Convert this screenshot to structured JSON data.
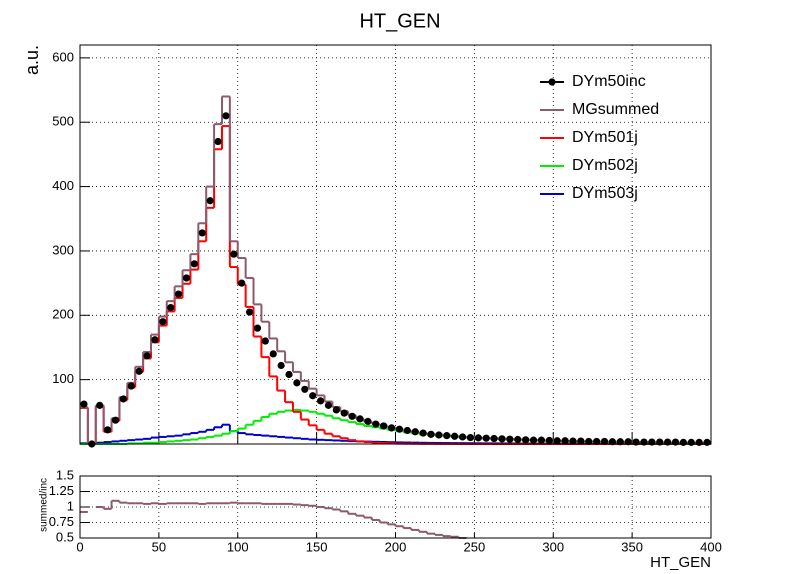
{
  "chart_data": [
    {
      "type": "histogram",
      "title": "HT_GEN",
      "ylabel": "a.u.",
      "bins": [
        0,
        5,
        10,
        15,
        20,
        25,
        30,
        35,
        40,
        45,
        50,
        55,
        60,
        65,
        70,
        75,
        80,
        85,
        90,
        95,
        100,
        105,
        110,
        115,
        120,
        125,
        130,
        135,
        140,
        145,
        150,
        155,
        160,
        165,
        170,
        175,
        180,
        185,
        190,
        195,
        200,
        205,
        210,
        215,
        220,
        225,
        230,
        235,
        240,
        245,
        250,
        255,
        260,
        265,
        270,
        275,
        280,
        285,
        290,
        295,
        300,
        305,
        310,
        315,
        320,
        325,
        330,
        335,
        340,
        345,
        350,
        355,
        360,
        365,
        370,
        375,
        380,
        385,
        390,
        395,
        400
      ],
      "series": [
        {
          "name": "DYm50inc",
          "color": "#000000",
          "marker": "circle",
          "values": [
            62,
            0,
            60,
            22,
            37,
            70,
            90,
            113,
            137,
            162,
            190,
            212,
            233,
            258,
            280,
            328,
            378,
            470,
            510,
            295,
            250,
            205,
            180,
            160,
            140,
            122,
            108,
            95,
            85,
            75,
            67,
            60,
            53,
            48,
            43,
            39,
            35,
            31,
            28,
            25,
            23,
            21,
            19,
            17,
            15,
            14,
            13,
            12,
            11,
            10,
            9.5,
            9,
            8.5,
            8,
            7.5,
            7,
            6.5,
            6,
            6,
            5.5,
            5,
            5,
            4.5,
            4.5,
            4,
            4,
            4,
            3.5,
            3.5,
            3.5,
            3,
            3,
            3,
            3,
            3,
            3,
            2.5,
            2.5,
            2.5,
            2.5
          ]
        },
        {
          "name": "MGsummed",
          "color": "#8c5a6e",
          "values": [
            57,
            0,
            60,
            22,
            40,
            73,
            95,
            120,
            143,
            170,
            198,
            222,
            245,
            270,
            295,
            343,
            400,
            497,
            540,
            315,
            289,
            258,
            217,
            190,
            164,
            144,
            127,
            112,
            98,
            86,
            75.5,
            66,
            57.5,
            51,
            44.5,
            39,
            34.7,
            31.4,
            28.6,
            25.8,
            23,
            20.7,
            18.9,
            17.1,
            15.9,
            14.7,
            13.6,
            12.5,
            11.3,
            10.7,
            10.1,
            9.5,
            9,
            8.4,
            7.9,
            7.3,
            6.8,
            6.2,
            5.7,
            5.5,
            5.1,
            4.8,
            4.6,
            4.3,
            4.1,
            3.9,
            3.7,
            3.4,
            3.2,
            3.1,
            3,
            2.9,
            2.7,
            2.6,
            2.5,
            2.4,
            2.3,
            2.2,
            2,
            1.9
          ]
        },
        {
          "name": "DYm501j",
          "color": "#ff0000",
          "values": [
            56,
            0,
            58,
            19,
            36,
            68,
            88,
            112,
            133,
            158,
            184,
            206,
            227,
            249,
            271,
            315,
            367,
            458,
            494,
            275,
            248,
            213,
            167,
            135,
            105,
            83,
            65,
            50,
            38,
            29,
            22,
            16,
            12,
            9,
            6,
            4,
            3,
            2,
            1.5,
            1,
            0.5,
            0.4,
            0.3,
            0.2,
            0.2,
            0.1,
            0.1,
            0.1,
            0,
            0,
            0,
            0,
            0,
            0,
            0,
            0,
            0,
            0,
            0,
            0,
            0,
            0,
            0,
            0,
            0,
            0,
            0,
            0,
            0,
            0,
            0,
            0,
            0,
            0,
            0,
            0,
            0,
            0,
            0,
            0
          ]
        },
        {
          "name": "DYm502j",
          "color": "#00ee00",
          "values": [
            0,
            0,
            0,
            0,
            0,
            0,
            1,
            1,
            2,
            2,
            3,
            4,
            5,
            6,
            7,
            9,
            11,
            13,
            16,
            20,
            24,
            30,
            36,
            42,
            47,
            50,
            52,
            53,
            52,
            50,
            47,
            44,
            40,
            37,
            34,
            31,
            28,
            26,
            24,
            22,
            20,
            18,
            16.5,
            15,
            14,
            13,
            12,
            11,
            10,
            9.5,
            9,
            8.5,
            8,
            7.5,
            7,
            6.5,
            6,
            5.5,
            5,
            4.8,
            4.5,
            4.2,
            4,
            3.8,
            3.6,
            3.4,
            3.2,
            3,
            2.8,
            2.7,
            2.6,
            2.5,
            2.4,
            2.3,
            2.2,
            2.1,
            2,
            1.9,
            1.8,
            1.7
          ]
        },
        {
          "name": "DYm503j",
          "color": "#0000cc",
          "values": [
            1,
            0,
            2,
            3,
            4,
            5,
            6,
            7,
            8,
            10,
            11,
            12,
            13,
            15,
            17,
            19,
            22,
            26,
            30,
            20,
            17,
            15,
            14,
            13,
            12,
            11,
            10,
            9,
            8,
            7,
            6.5,
            6,
            5.5,
            5,
            4.5,
            4,
            3.7,
            3.4,
            3.1,
            2.8,
            2.5,
            2.3,
            2.1,
            1.9,
            1.7,
            1.6,
            1.5,
            1.4,
            1.3,
            1.2,
            1.1,
            1,
            1,
            0.9,
            0.9,
            0.8,
            0.8,
            0.7,
            0.7,
            0.7,
            0.6,
            0.6,
            0.6,
            0.5,
            0.5,
            0.5,
            0.5,
            0.4,
            0.4,
            0.4,
            0.4,
            0.4,
            0.3,
            0.3,
            0.3,
            0.3,
            0.3,
            0.3,
            0.2,
            0.2
          ]
        }
      ],
      "xlim": [
        0,
        400
      ],
      "xticks": [
        0,
        50,
        100,
        150,
        200,
        250,
        300,
        350,
        400
      ],
      "ylim": [
        0,
        620
      ],
      "yticks": [
        100,
        200,
        300,
        400,
        500,
        600
      ],
      "grid": true,
      "legend": "upper right"
    },
    {
      "type": "histogram",
      "ylabel": "summed/inc",
      "xlabel": "HT_GEN",
      "bins": [
        0,
        5,
        10,
        15,
        20,
        25,
        30,
        35,
        40,
        45,
        50,
        55,
        60,
        65,
        70,
        75,
        80,
        85,
        90,
        95,
        100,
        105,
        110,
        115,
        120,
        125,
        130,
        135,
        140,
        145,
        150,
        155,
        160,
        165,
        170,
        175,
        180,
        185,
        190,
        195,
        200,
        205,
        210,
        215,
        220,
        225,
        230,
        235,
        240,
        245,
        250,
        255,
        260,
        265,
        270,
        275,
        280,
        285,
        290,
        295,
        300,
        305,
        310,
        315,
        320,
        325,
        330,
        335,
        340,
        345,
        350,
        355,
        360,
        365,
        370,
        375,
        380,
        385,
        390,
        395,
        400
      ],
      "series": [
        {
          "color": "#8c5a6e",
          "values": [
            0.92,
            null,
            1.0,
            0.97,
            1.1,
            1.07,
            1.06,
            1.06,
            1.05,
            1.06,
            1.05,
            1.06,
            1.06,
            1.06,
            1.06,
            1.05,
            1.06,
            1.06,
            1.06,
            1.07,
            1.06,
            1.06,
            1.06,
            1.05,
            1.05,
            1.05,
            1.05,
            1.04,
            1.03,
            1.02,
            1.0,
            0.98,
            0.96,
            0.93,
            0.89,
            0.86,
            0.83,
            0.79,
            0.75,
            0.72,
            0.69,
            0.66,
            0.63,
            0.6,
            0.57,
            0.55,
            0.53,
            0.52,
            0.5,
            null,
            null,
            null,
            null,
            null,
            null,
            null,
            null,
            null,
            null,
            null,
            null,
            null,
            null,
            null,
            null,
            null,
            null,
            null,
            null,
            null,
            null,
            null,
            null,
            null,
            null,
            null,
            null,
            null,
            null,
            null
          ]
        }
      ],
      "xlim": [
        0,
        400
      ],
      "xticks": [
        0,
        50,
        100,
        150,
        200,
        250,
        300,
        350,
        400
      ],
      "ylim": [
        0.5,
        1.5
      ],
      "yticks": [
        0.5,
        0.75,
        1,
        1.25,
        1.5
      ],
      "grid": true
    }
  ]
}
